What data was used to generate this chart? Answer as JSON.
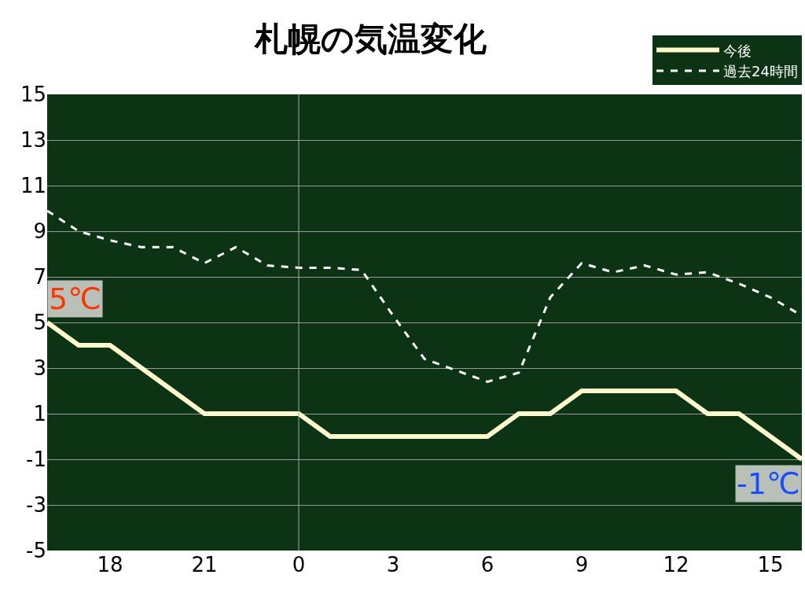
{
  "chart_data": {
    "type": "line",
    "title": "札幌の気温変化",
    "categories": [
      null,
      null,
      "18",
      null,
      null,
      "21",
      null,
      null,
      "0",
      null,
      null,
      "3",
      null,
      null,
      "6",
      null,
      null,
      "9",
      null,
      null,
      "12",
      null,
      null,
      "15",
      null
    ],
    "series": [
      {
        "name": "今後",
        "color": "#fffacd",
        "line_style": "solid",
        "values": [
          5,
          4,
          4,
          3,
          2,
          1,
          1,
          1,
          1,
          0,
          0,
          0,
          0,
          0,
          0,
          1,
          1,
          2,
          2,
          2,
          2,
          1,
          1,
          0,
          -1
        ]
      },
      {
        "name": "過去24時間",
        "color": "#ffffff",
        "line_style": "dashed",
        "values": [
          9.9,
          9.0,
          8.6,
          8.3,
          8.3,
          7.6,
          8.3,
          7.5,
          7.4,
          7.4,
          7.3,
          5.3,
          3.4,
          2.9,
          2.4,
          2.8,
          6.1,
          7.6,
          7.2,
          7.5,
          7.1,
          7.2,
          6.7,
          6.1,
          5.3
        ]
      }
    ],
    "ylim": [
      -5,
      15
    ],
    "yticks": [
      -5,
      -3,
      -1,
      1,
      3,
      5,
      7,
      9,
      11,
      13,
      15
    ],
    "grid": "y",
    "legend": "top right",
    "marker": "none",
    "ref_lines": [
      {
        "axis": "x",
        "value": "0",
        "color": "#aaaaaa"
      }
    ],
    "annotations": [
      "5℃",
      "-1℃"
    ]
  }
}
